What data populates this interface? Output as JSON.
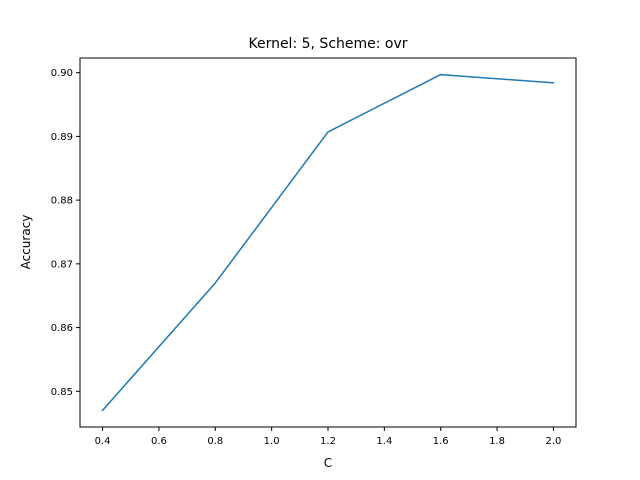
{
  "chart_data": {
    "type": "line",
    "title": "Kernel: 5, Scheme: ovr",
    "xlabel": "C",
    "ylabel": "Accuracy",
    "x": [
      0.4,
      0.8,
      1.2,
      1.6,
      2.0
    ],
    "series": [
      {
        "values": [
          0.847,
          0.867,
          0.8907,
          0.8997,
          0.8984
        ],
        "color": "#1f77b4"
      }
    ],
    "xlim": [
      0.32,
      2.08
    ],
    "ylim": [
      0.8444,
      0.9023
    ],
    "xticks": [
      0.4,
      0.6,
      0.8,
      1.0,
      1.2,
      1.4,
      1.6,
      1.8,
      2.0
    ],
    "xtick_labels": [
      "0.4",
      "0.6",
      "0.8",
      "1.0",
      "1.2",
      "1.4",
      "1.6",
      "1.8",
      "2.0"
    ],
    "yticks": [
      0.85,
      0.86,
      0.87,
      0.88,
      0.89,
      0.9
    ],
    "ytick_labels": [
      "0.85",
      "0.86",
      "0.87",
      "0.88",
      "0.89",
      "0.90"
    ],
    "grid": false,
    "legend": false
  }
}
